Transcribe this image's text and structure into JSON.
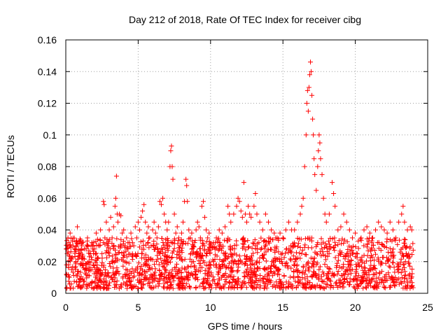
{
  "chart_data": {
    "type": "scatter",
    "title": "Day 212 of 2018, Rate Of TEC Index for receiver cibg",
    "xlabel": "GPS time / hours",
    "ylabel": "ROTI / TECUs",
    "xlim": [
      0,
      25
    ],
    "ylim": [
      0,
      0.16
    ],
    "xticks": [
      0,
      5,
      10,
      15,
      20,
      25
    ],
    "yticks": [
      0,
      0.02,
      0.04,
      0.06,
      0.08,
      0.1,
      0.12,
      0.14,
      0.16
    ],
    "xtick_labels": [
      "0",
      "5",
      "10",
      "15",
      "20",
      "25"
    ],
    "ytick_labels": [
      "0",
      "0.02",
      "0.04",
      "0.06",
      "0.08",
      "0.1",
      "0.12",
      "0.14",
      "0.16"
    ],
    "grid": true,
    "marker": "+",
    "color": "#ff0000",
    "series": [
      {
        "name": "ROTI",
        "points": [
          [
            0.05,
            0.012
          ],
          [
            0.1,
            0.025
          ],
          [
            0.15,
            0.035
          ],
          [
            0.2,
            0.018
          ],
          [
            0.3,
            0.038
          ],
          [
            0.35,
            0.022
          ],
          [
            0.4,
            0.015
          ],
          [
            0.5,
            0.03
          ],
          [
            0.6,
            0.028
          ],
          [
            0.7,
            0.02
          ],
          [
            0.8,
            0.042
          ],
          [
            0.9,
            0.025
          ],
          [
            1.0,
            0.018
          ],
          [
            1.1,
            0.03
          ],
          [
            1.2,
            0.022
          ],
          [
            1.3,
            0.015
          ],
          [
            1.4,
            0.028
          ],
          [
            1.5,
            0.035
          ],
          [
            1.6,
            0.02
          ],
          [
            1.7,
            0.025
          ],
          [
            1.8,
            0.032
          ],
          [
            1.9,
            0.018
          ],
          [
            2.0,
            0.028
          ],
          [
            2.1,
            0.038
          ],
          [
            2.2,
            0.022
          ],
          [
            2.3,
            0.03
          ],
          [
            2.4,
            0.04
          ],
          [
            2.5,
            0.025
          ],
          [
            2.6,
            0.058
          ],
          [
            2.65,
            0.056
          ],
          [
            2.7,
            0.035
          ],
          [
            2.8,
            0.045
          ],
          [
            2.9,
            0.03
          ],
          [
            3.0,
            0.04
          ],
          [
            3.1,
            0.048
          ],
          [
            3.2,
            0.035
          ],
          [
            3.3,
            0.042
          ],
          [
            3.4,
            0.055
          ],
          [
            3.45,
            0.06
          ],
          [
            3.5,
            0.074
          ],
          [
            3.55,
            0.05
          ],
          [
            3.6,
            0.045
          ],
          [
            3.7,
            0.05
          ],
          [
            3.8,
            0.049
          ],
          [
            3.9,
            0.038
          ],
          [
            4.0,
            0.04
          ],
          [
            4.1,
            0.03
          ],
          [
            4.2,
            0.035
          ],
          [
            4.3,
            0.028
          ],
          [
            4.4,
            0.032
          ],
          [
            4.5,
            0.038
          ],
          [
            4.6,
            0.025
          ],
          [
            4.7,
            0.03
          ],
          [
            4.8,
            0.042
          ],
          [
            4.9,
            0.035
          ],
          [
            5.0,
            0.045
          ],
          [
            5.1,
            0.04
          ],
          [
            5.2,
            0.048
          ],
          [
            5.3,
            0.052
          ],
          [
            5.4,
            0.056
          ],
          [
            5.5,
            0.045
          ],
          [
            5.6,
            0.038
          ],
          [
            5.7,
            0.042
          ],
          [
            5.8,
            0.035
          ],
          [
            5.9,
            0.03
          ],
          [
            6.0,
            0.04
          ],
          [
            6.1,
            0.045
          ],
          [
            6.2,
            0.038
          ],
          [
            6.3,
            0.035
          ],
          [
            6.4,
            0.042
          ],
          [
            6.5,
            0.058
          ],
          [
            6.6,
            0.056
          ],
          [
            6.7,
            0.06
          ],
          [
            6.8,
            0.05
          ],
          [
            6.9,
            0.045
          ],
          [
            7.0,
            0.04
          ],
          [
            7.1,
            0.045
          ],
          [
            7.2,
            0.08
          ],
          [
            7.25,
            0.09
          ],
          [
            7.3,
            0.093
          ],
          [
            7.35,
            0.08
          ],
          [
            7.4,
            0.072
          ],
          [
            7.5,
            0.05
          ],
          [
            7.6,
            0.038
          ],
          [
            7.7,
            0.042
          ],
          [
            7.8,
            0.035
          ],
          [
            7.9,
            0.03
          ],
          [
            8.0,
            0.038
          ],
          [
            8.1,
            0.045
          ],
          [
            8.2,
            0.058
          ],
          [
            8.3,
            0.072
          ],
          [
            8.35,
            0.068
          ],
          [
            8.4,
            0.058
          ],
          [
            8.5,
            0.04
          ],
          [
            8.6,
            0.035
          ],
          [
            8.7,
            0.038
          ],
          [
            8.8,
            0.03
          ],
          [
            8.9,
            0.032
          ],
          [
            9.0,
            0.04
          ],
          [
            9.1,
            0.045
          ],
          [
            9.2,
            0.042
          ],
          [
            9.3,
            0.035
          ],
          [
            9.4,
            0.055
          ],
          [
            9.5,
            0.058
          ],
          [
            9.6,
            0.048
          ],
          [
            9.7,
            0.04
          ],
          [
            9.8,
            0.035
          ],
          [
            9.9,
            0.038
          ],
          [
            10.0,
            0.03
          ],
          [
            10.2,
            0.032
          ],
          [
            10.4,
            0.035
          ],
          [
            10.6,
            0.04
          ],
          [
            10.8,
            0.038
          ],
          [
            11.0,
            0.042
          ],
          [
            11.2,
            0.055
          ],
          [
            11.3,
            0.05
          ],
          [
            11.4,
            0.045
          ],
          [
            11.6,
            0.05
          ],
          [
            11.8,
            0.055
          ],
          [
            11.9,
            0.06
          ],
          [
            12.0,
            0.058
          ],
          [
            12.1,
            0.052
          ],
          [
            12.2,
            0.048
          ],
          [
            12.3,
            0.07
          ],
          [
            12.4,
            0.05
          ],
          [
            12.5,
            0.045
          ],
          [
            12.6,
            0.055
          ],
          [
            12.7,
            0.05
          ],
          [
            12.8,
            0.048
          ],
          [
            13.0,
            0.055
          ],
          [
            13.1,
            0.063
          ],
          [
            13.2,
            0.05
          ],
          [
            13.4,
            0.045
          ],
          [
            13.6,
            0.04
          ],
          [
            13.8,
            0.05
          ],
          [
            14.0,
            0.045
          ],
          [
            14.2,
            0.04
          ],
          [
            14.4,
            0.038
          ],
          [
            14.6,
            0.035
          ],
          [
            14.8,
            0.038
          ],
          [
            15.0,
            0.035
          ],
          [
            15.2,
            0.04
          ],
          [
            15.4,
            0.045
          ],
          [
            15.6,
            0.04
          ],
          [
            15.8,
            0.04
          ],
          [
            16.0,
            0.045
          ],
          [
            16.2,
            0.05
          ],
          [
            16.3,
            0.055
          ],
          [
            16.4,
            0.06
          ],
          [
            16.5,
            0.08
          ],
          [
            16.6,
            0.1
          ],
          [
            16.65,
            0.12
          ],
          [
            16.7,
            0.128
          ],
          [
            16.75,
            0.115
          ],
          [
            16.8,
            0.13
          ],
          [
            16.85,
            0.138
          ],
          [
            16.9,
            0.146
          ],
          [
            16.95,
            0.14
          ],
          [
            17.0,
            0.125
          ],
          [
            17.05,
            0.11
          ],
          [
            17.1,
            0.1
          ],
          [
            17.15,
            0.085
          ],
          [
            17.2,
            0.075
          ],
          [
            17.3,
            0.065
          ],
          [
            17.4,
            0.08
          ],
          [
            17.45,
            0.09
          ],
          [
            17.5,
            0.1
          ],
          [
            17.55,
            0.095
          ],
          [
            17.6,
            0.085
          ],
          [
            17.7,
            0.075
          ],
          [
            17.8,
            0.06
          ],
          [
            17.9,
            0.05
          ],
          [
            18.0,
            0.045
          ],
          [
            18.2,
            0.05
          ],
          [
            18.4,
            0.07
          ],
          [
            18.5,
            0.063
          ],
          [
            18.6,
            0.055
          ],
          [
            18.8,
            0.04
          ],
          [
            19.0,
            0.042
          ],
          [
            19.2,
            0.05
          ],
          [
            19.4,
            0.045
          ],
          [
            19.6,
            0.04
          ],
          [
            19.8,
            0.035
          ],
          [
            20.0,
            0.038
          ],
          [
            20.2,
            0.033
          ],
          [
            20.4,
            0.035
          ],
          [
            20.6,
            0.04
          ],
          [
            20.8,
            0.042
          ],
          [
            21.0,
            0.038
          ],
          [
            21.2,
            0.035
          ],
          [
            21.4,
            0.04
          ],
          [
            21.6,
            0.045
          ],
          [
            21.8,
            0.042
          ],
          [
            22.0,
            0.04
          ],
          [
            22.2,
            0.038
          ],
          [
            22.4,
            0.045
          ],
          [
            22.6,
            0.04
          ],
          [
            22.8,
            0.035
          ],
          [
            23.0,
            0.045
          ],
          [
            23.2,
            0.05
          ],
          [
            23.3,
            0.055
          ],
          [
            23.4,
            0.045
          ],
          [
            23.6,
            0.04
          ],
          [
            23.8,
            0.042
          ],
          [
            23.9,
            0.04
          ]
        ],
        "baseline_band": {
          "x_range": [
            0,
            24
          ],
          "low": 0.003,
          "high": 0.035
        }
      }
    ]
  }
}
